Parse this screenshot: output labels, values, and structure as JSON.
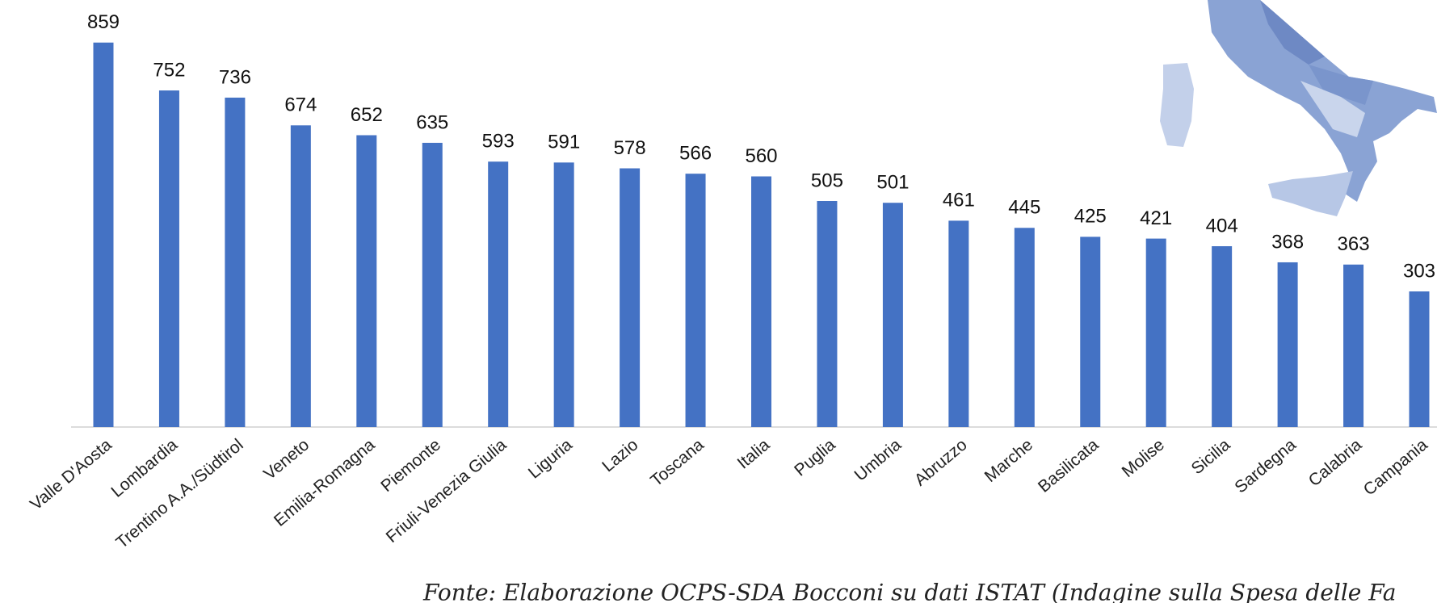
{
  "chart_data": {
    "type": "bar",
    "categories": [
      "Valle D'Aosta",
      "Lombardia",
      "Trentino A.A./Südtirol",
      "Veneto",
      "Emilia-Romagna",
      "Piemonte",
      "Friuli-Venezia Giulia",
      "Liguria",
      "Lazio",
      "Toscana",
      "Italia",
      "Puglia",
      "Umbria",
      "Abruzzo",
      "Marche",
      "Basilicata",
      "Molise",
      "Sicilia",
      "Sardegna",
      "Calabria",
      "Campania"
    ],
    "values": [
      859,
      752,
      736,
      674,
      652,
      635,
      593,
      591,
      578,
      566,
      560,
      505,
      501,
      461,
      445,
      425,
      421,
      404,
      368,
      363,
      303
    ],
    "color": "#4472c4",
    "ylim": [
      0,
      900
    ],
    "source": "Fonte: Elaborazione OCPS-SDA Bocconi su dati ISTAT (Indagine sulla Spesa delle Fa"
  }
}
